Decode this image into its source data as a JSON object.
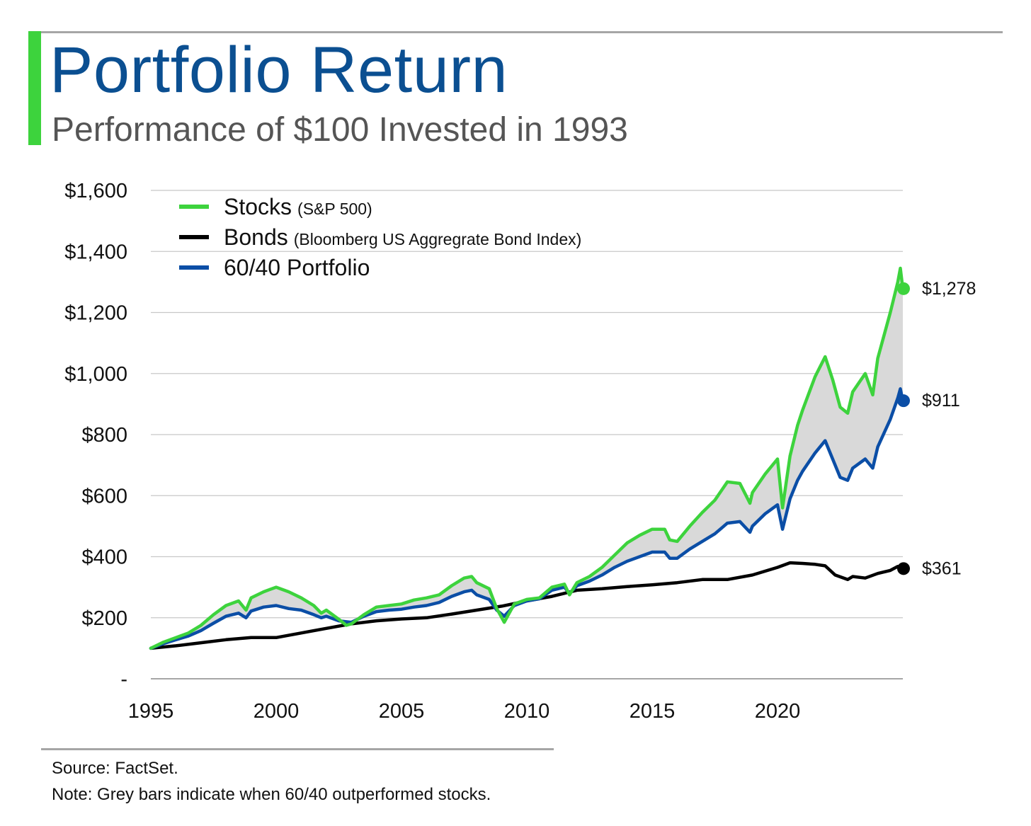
{
  "header": {
    "title": "Portfolio Return",
    "subtitle": "Performance of $100 Invested in 1993"
  },
  "colors": {
    "accent": "#3dd33d",
    "title": "#0b4f91",
    "subtitle": "#555555",
    "stocks": "#3dd33d",
    "bonds": "#000000",
    "portfolio": "#0b4ea6",
    "band": "#d9d9d9",
    "grid": "#c8c8c8"
  },
  "footer": {
    "source": "Source: FactSet.",
    "note": "Note: Grey bars indicate when 60/40 outperformed stocks."
  },
  "chart_data": {
    "type": "line",
    "grid": true,
    "legend_position": "top-left",
    "xlim": [
      1995,
      2025
    ],
    "ylim": [
      0,
      1600
    ],
    "x_ticks": [
      {
        "value": 1995,
        "label": "1995"
      },
      {
        "value": 2000,
        "label": "2000"
      },
      {
        "value": 2005,
        "label": "2005"
      },
      {
        "value": 2010,
        "label": "2010"
      },
      {
        "value": 2015,
        "label": "2015"
      },
      {
        "value": 2020,
        "label": "2020"
      }
    ],
    "y_ticks": [
      {
        "value": 0,
        "label": "-"
      },
      {
        "value": 200,
        "label": "$200"
      },
      {
        "value": 400,
        "label": "$400"
      },
      {
        "value": 600,
        "label": "$600"
      },
      {
        "value": 800,
        "label": "$800"
      },
      {
        "value": 1000,
        "label": "$1,000"
      },
      {
        "value": 1200,
        "label": "$1,200"
      },
      {
        "value": 1400,
        "label": "$1,400"
      },
      {
        "value": 1600,
        "label": "$1,600"
      }
    ],
    "series": [
      {
        "key": "stocks",
        "name": "Stocks",
        "detail": "(S&P 500)",
        "end_value": 1278,
        "end_label": "$1,278",
        "points": [
          [
            1995,
            100
          ],
          [
            1995.5,
            120
          ],
          [
            1996,
            135
          ],
          [
            1996.5,
            150
          ],
          [
            1997,
            175
          ],
          [
            1997.5,
            210
          ],
          [
            1998,
            240
          ],
          [
            1998.5,
            255
          ],
          [
            1998.8,
            225
          ],
          [
            1999,
            265
          ],
          [
            1999.5,
            285
          ],
          [
            2000,
            300
          ],
          [
            2000.5,
            285
          ],
          [
            2001,
            265
          ],
          [
            2001.5,
            240
          ],
          [
            2001.8,
            215
          ],
          [
            2002,
            225
          ],
          [
            2002.5,
            195
          ],
          [
            2002.8,
            175
          ],
          [
            2003,
            180
          ],
          [
            2003.5,
            210
          ],
          [
            2004,
            235
          ],
          [
            2004.5,
            240
          ],
          [
            2005,
            245
          ],
          [
            2005.5,
            258
          ],
          [
            2006,
            265
          ],
          [
            2006.5,
            275
          ],
          [
            2007,
            305
          ],
          [
            2007.5,
            330
          ],
          [
            2007.8,
            335
          ],
          [
            2008,
            315
          ],
          [
            2008.5,
            295
          ],
          [
            2008.8,
            230
          ],
          [
            2009.1,
            185
          ],
          [
            2009.5,
            245
          ],
          [
            2010,
            260
          ],
          [
            2010.5,
            265
          ],
          [
            2011,
            300
          ],
          [
            2011.5,
            310
          ],
          [
            2011.7,
            275
          ],
          [
            2012,
            315
          ],
          [
            2012.5,
            335
          ],
          [
            2013,
            365
          ],
          [
            2013.5,
            405
          ],
          [
            2014,
            445
          ],
          [
            2014.5,
            470
          ],
          [
            2015,
            490
          ],
          [
            2015.5,
            490
          ],
          [
            2015.7,
            455
          ],
          [
            2016,
            450
          ],
          [
            2016.5,
            500
          ],
          [
            2017,
            545
          ],
          [
            2017.5,
            585
          ],
          [
            2018,
            645
          ],
          [
            2018.5,
            640
          ],
          [
            2018.9,
            575
          ],
          [
            2019,
            610
          ],
          [
            2019.5,
            670
          ],
          [
            2020,
            720
          ],
          [
            2020.2,
            560
          ],
          [
            2020.5,
            730
          ],
          [
            2020.8,
            830
          ],
          [
            2021,
            880
          ],
          [
            2021.5,
            990
          ],
          [
            2021.9,
            1055
          ],
          [
            2022.2,
            980
          ],
          [
            2022.5,
            890
          ],
          [
            2022.8,
            870
          ],
          [
            2023,
            940
          ],
          [
            2023.5,
            1000
          ],
          [
            2023.8,
            930
          ],
          [
            2024,
            1050
          ],
          [
            2024.5,
            1200
          ],
          [
            2024.8,
            1300
          ],
          [
            2024.9,
            1345
          ],
          [
            2025,
            1278
          ]
        ]
      },
      {
        "key": "bonds",
        "name": "Bonds",
        "detail": "(Bloomberg US Aggregrate Bond Index)",
        "end_value": 361,
        "end_label": "$361",
        "points": [
          [
            1995,
            100
          ],
          [
            1996,
            108
          ],
          [
            1997,
            118
          ],
          [
            1998,
            128
          ],
          [
            1999,
            135
          ],
          [
            2000,
            135
          ],
          [
            2001,
            150
          ],
          [
            2002,
            165
          ],
          [
            2003,
            180
          ],
          [
            2004,
            190
          ],
          [
            2005,
            196
          ],
          [
            2006,
            200
          ],
          [
            2007,
            212
          ],
          [
            2008,
            225
          ],
          [
            2009,
            238
          ],
          [
            2010,
            255
          ],
          [
            2011,
            270
          ],
          [
            2012,
            290
          ],
          [
            2013,
            295
          ],
          [
            2014,
            302
          ],
          [
            2015,
            308
          ],
          [
            2016,
            315
          ],
          [
            2017,
            325
          ],
          [
            2018,
            325
          ],
          [
            2019,
            340
          ],
          [
            2020,
            365
          ],
          [
            2020.5,
            380
          ],
          [
            2021,
            378
          ],
          [
            2021.5,
            375
          ],
          [
            2021.9,
            370
          ],
          [
            2022.3,
            340
          ],
          [
            2022.8,
            325
          ],
          [
            2023,
            335
          ],
          [
            2023.5,
            330
          ],
          [
            2024,
            345
          ],
          [
            2024.5,
            355
          ],
          [
            2024.8,
            368
          ],
          [
            2025,
            361
          ]
        ]
      },
      {
        "key": "portfolio",
        "name": "60/40 Portfolio",
        "detail": "",
        "end_value": 911,
        "end_label": "$911",
        "points": [
          [
            1995,
            100
          ],
          [
            1995.5,
            115
          ],
          [
            1996,
            128
          ],
          [
            1996.5,
            140
          ],
          [
            1997,
            158
          ],
          [
            1997.5,
            182
          ],
          [
            1998,
            205
          ],
          [
            1998.5,
            215
          ],
          [
            1998.8,
            200
          ],
          [
            1999,
            222
          ],
          [
            1999.5,
            235
          ],
          [
            2000,
            240
          ],
          [
            2000.5,
            230
          ],
          [
            2001,
            225
          ],
          [
            2001.5,
            210
          ],
          [
            2001.8,
            200
          ],
          [
            2002,
            205
          ],
          [
            2002.5,
            190
          ],
          [
            2003,
            185
          ],
          [
            2003.5,
            205
          ],
          [
            2004,
            220
          ],
          [
            2004.5,
            225
          ],
          [
            2005,
            228
          ],
          [
            2005.5,
            235
          ],
          [
            2006,
            240
          ],
          [
            2006.5,
            250
          ],
          [
            2007,
            270
          ],
          [
            2007.5,
            285
          ],
          [
            2007.8,
            290
          ],
          [
            2008,
            275
          ],
          [
            2008.5,
            260
          ],
          [
            2008.8,
            225
          ],
          [
            2009.1,
            205
          ],
          [
            2009.5,
            240
          ],
          [
            2010,
            255
          ],
          [
            2010.5,
            262
          ],
          [
            2011,
            290
          ],
          [
            2011.5,
            300
          ],
          [
            2011.7,
            280
          ],
          [
            2012,
            305
          ],
          [
            2012.5,
            320
          ],
          [
            2013,
            340
          ],
          [
            2013.5,
            365
          ],
          [
            2014,
            385
          ],
          [
            2014.5,
            400
          ],
          [
            2015,
            415
          ],
          [
            2015.5,
            415
          ],
          [
            2015.7,
            395
          ],
          [
            2016,
            395
          ],
          [
            2016.5,
            425
          ],
          [
            2017,
            450
          ],
          [
            2017.5,
            475
          ],
          [
            2018,
            510
          ],
          [
            2018.5,
            515
          ],
          [
            2018.9,
            480
          ],
          [
            2019,
            500
          ],
          [
            2019.5,
            540
          ],
          [
            2020,
            570
          ],
          [
            2020.2,
            490
          ],
          [
            2020.5,
            590
          ],
          [
            2020.8,
            650
          ],
          [
            2021,
            680
          ],
          [
            2021.5,
            740
          ],
          [
            2021.9,
            780
          ],
          [
            2022.2,
            720
          ],
          [
            2022.5,
            660
          ],
          [
            2022.8,
            650
          ],
          [
            2023,
            690
          ],
          [
            2023.5,
            720
          ],
          [
            2023.8,
            690
          ],
          [
            2024,
            760
          ],
          [
            2024.5,
            850
          ],
          [
            2024.8,
            920
          ],
          [
            2024.9,
            950
          ],
          [
            2025,
            911
          ]
        ]
      }
    ]
  }
}
